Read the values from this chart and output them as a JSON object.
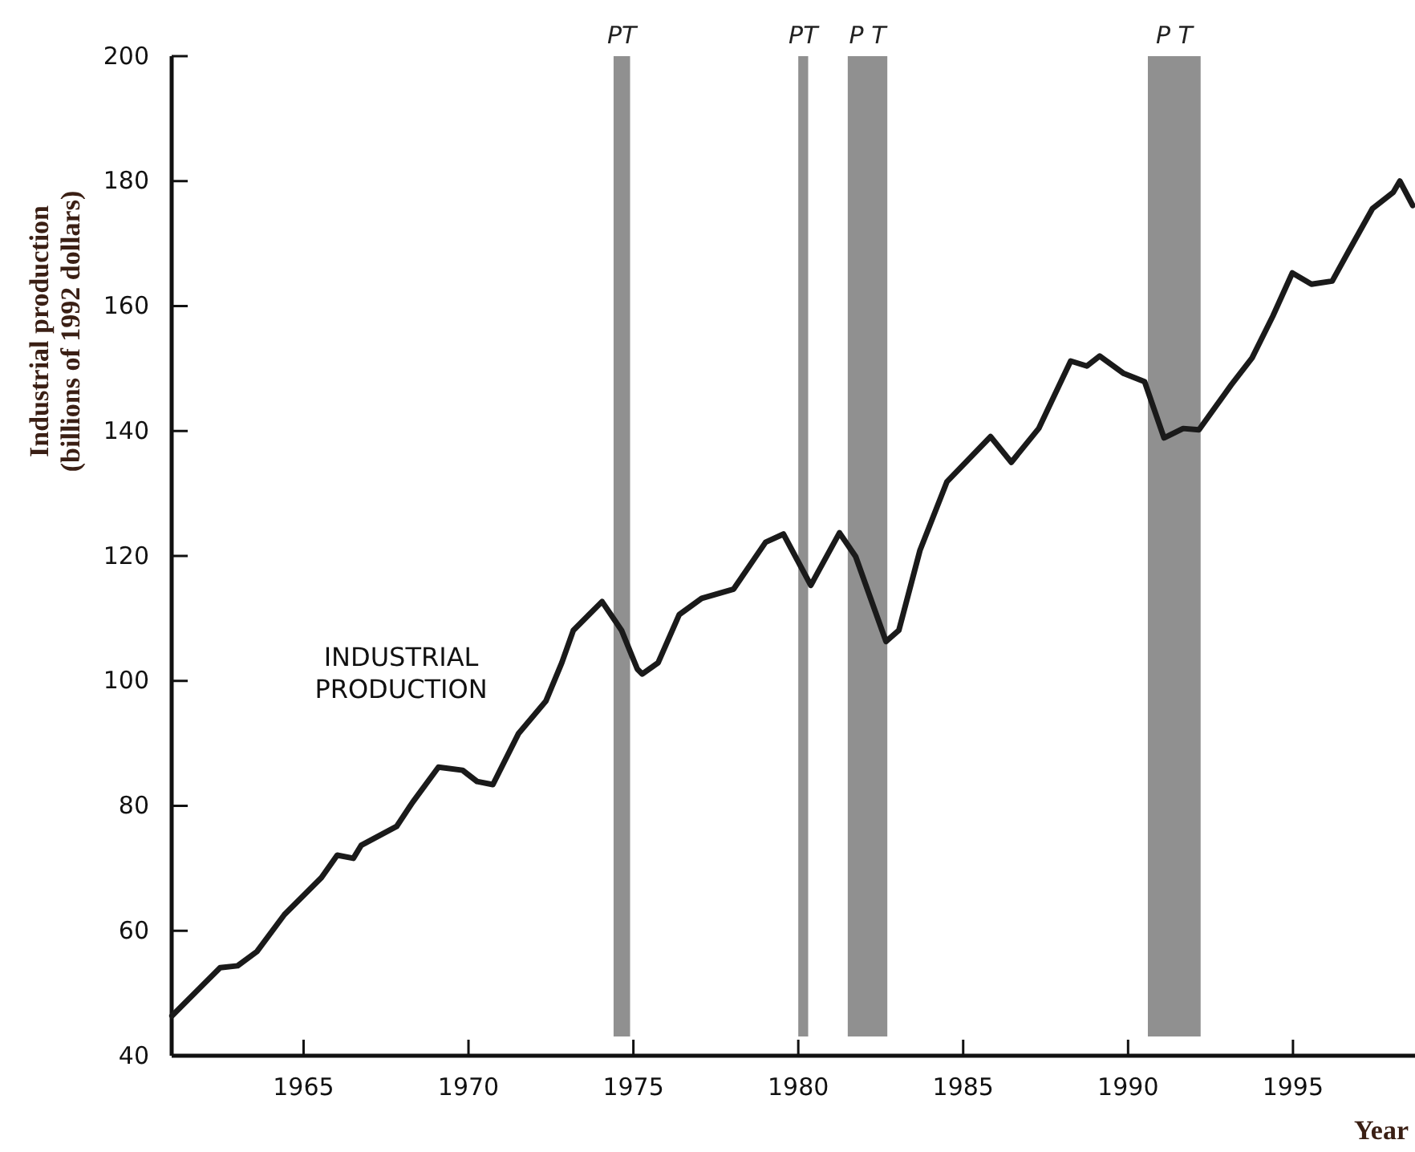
{
  "chart_data": {
    "type": "line",
    "xlabel": "Year",
    "ylabel": "Industrial production (billions of 1992 dollars)",
    "xlim": [
      1961,
      1998.7
    ],
    "xticks": [
      1965,
      1970,
      1975,
      1980,
      1985,
      1990,
      1995
    ],
    "ylim": [
      40,
      200
    ],
    "yticks": [
      40,
      60,
      80,
      100,
      120,
      140,
      160,
      180,
      200
    ],
    "grid": false,
    "marker": "none",
    "line_style": "solid",
    "series": [
      {
        "color": "#1a1a1a",
        "x": [
          1961.01,
          1962.47,
          1963.0,
          1963.59,
          1964.42,
          1965.54,
          1966.02,
          1966.51,
          1966.75,
          1967.82,
          1968.31,
          1969.09,
          1969.82,
          1970.26,
          1970.74,
          1971.52,
          1972.35,
          1972.83,
          1973.18,
          1974.05,
          1974.64,
          1975.12,
          1975.27,
          1975.75,
          1976.39,
          1977.07,
          1978.04,
          1979.01,
          1979.55,
          1980.38,
          1981.25,
          1981.74,
          1982.66,
          1983.05,
          1983.69,
          1984.51,
          1985.83,
          1986.46,
          1987.29,
          1988.26,
          1988.75,
          1989.14,
          1989.87,
          1990.5,
          1991.09,
          1991.67,
          1992.15,
          1993.13,
          1993.76,
          1994.39,
          1994.98,
          1995.56,
          1996.19,
          1996.68,
          1997.41,
          1998.04,
          1998.24,
          1998.63
        ],
        "values": [
          46.4,
          54.1,
          54.4,
          56.7,
          62.6,
          68.5,
          72.1,
          71.6,
          73.7,
          76.7,
          80.6,
          86.2,
          85.7,
          83.9,
          83.4,
          91.6,
          96.8,
          102.9,
          108.1,
          112.7,
          108.1,
          101.9,
          101.1,
          102.9,
          110.6,
          113.2,
          114.7,
          122.2,
          123.5,
          115.3,
          123.7,
          119.9,
          106.3,
          108.1,
          120.9,
          131.9,
          139.1,
          135.0,
          140.4,
          151.2,
          150.4,
          152.0,
          149.2,
          147.9,
          138.9,
          140.4,
          140.2,
          147.4,
          151.7,
          158.4,
          165.3,
          163.5,
          164.0,
          168.7,
          175.6,
          178.2,
          180.0,
          176.1
        ]
      }
    ],
    "bands": [
      {
        "axis": "x",
        "from": 1974.4,
        "to": 1974.9,
        "label": "PT",
        "color": "#6b6b6b"
      },
      {
        "axis": "x",
        "from": 1980.0,
        "to": 1980.3,
        "label": "PT",
        "color": "#6b6b6b"
      },
      {
        "axis": "x",
        "from": 1981.5,
        "to": 1982.7,
        "label": "P T",
        "color": "#6b6b6b"
      },
      {
        "axis": "x",
        "from": 1990.6,
        "to": 1992.2,
        "label": "P T",
        "color": "#6b6b6b"
      }
    ],
    "annotations": [
      "INDUSTRIAL PRODUCTION"
    ]
  }
}
